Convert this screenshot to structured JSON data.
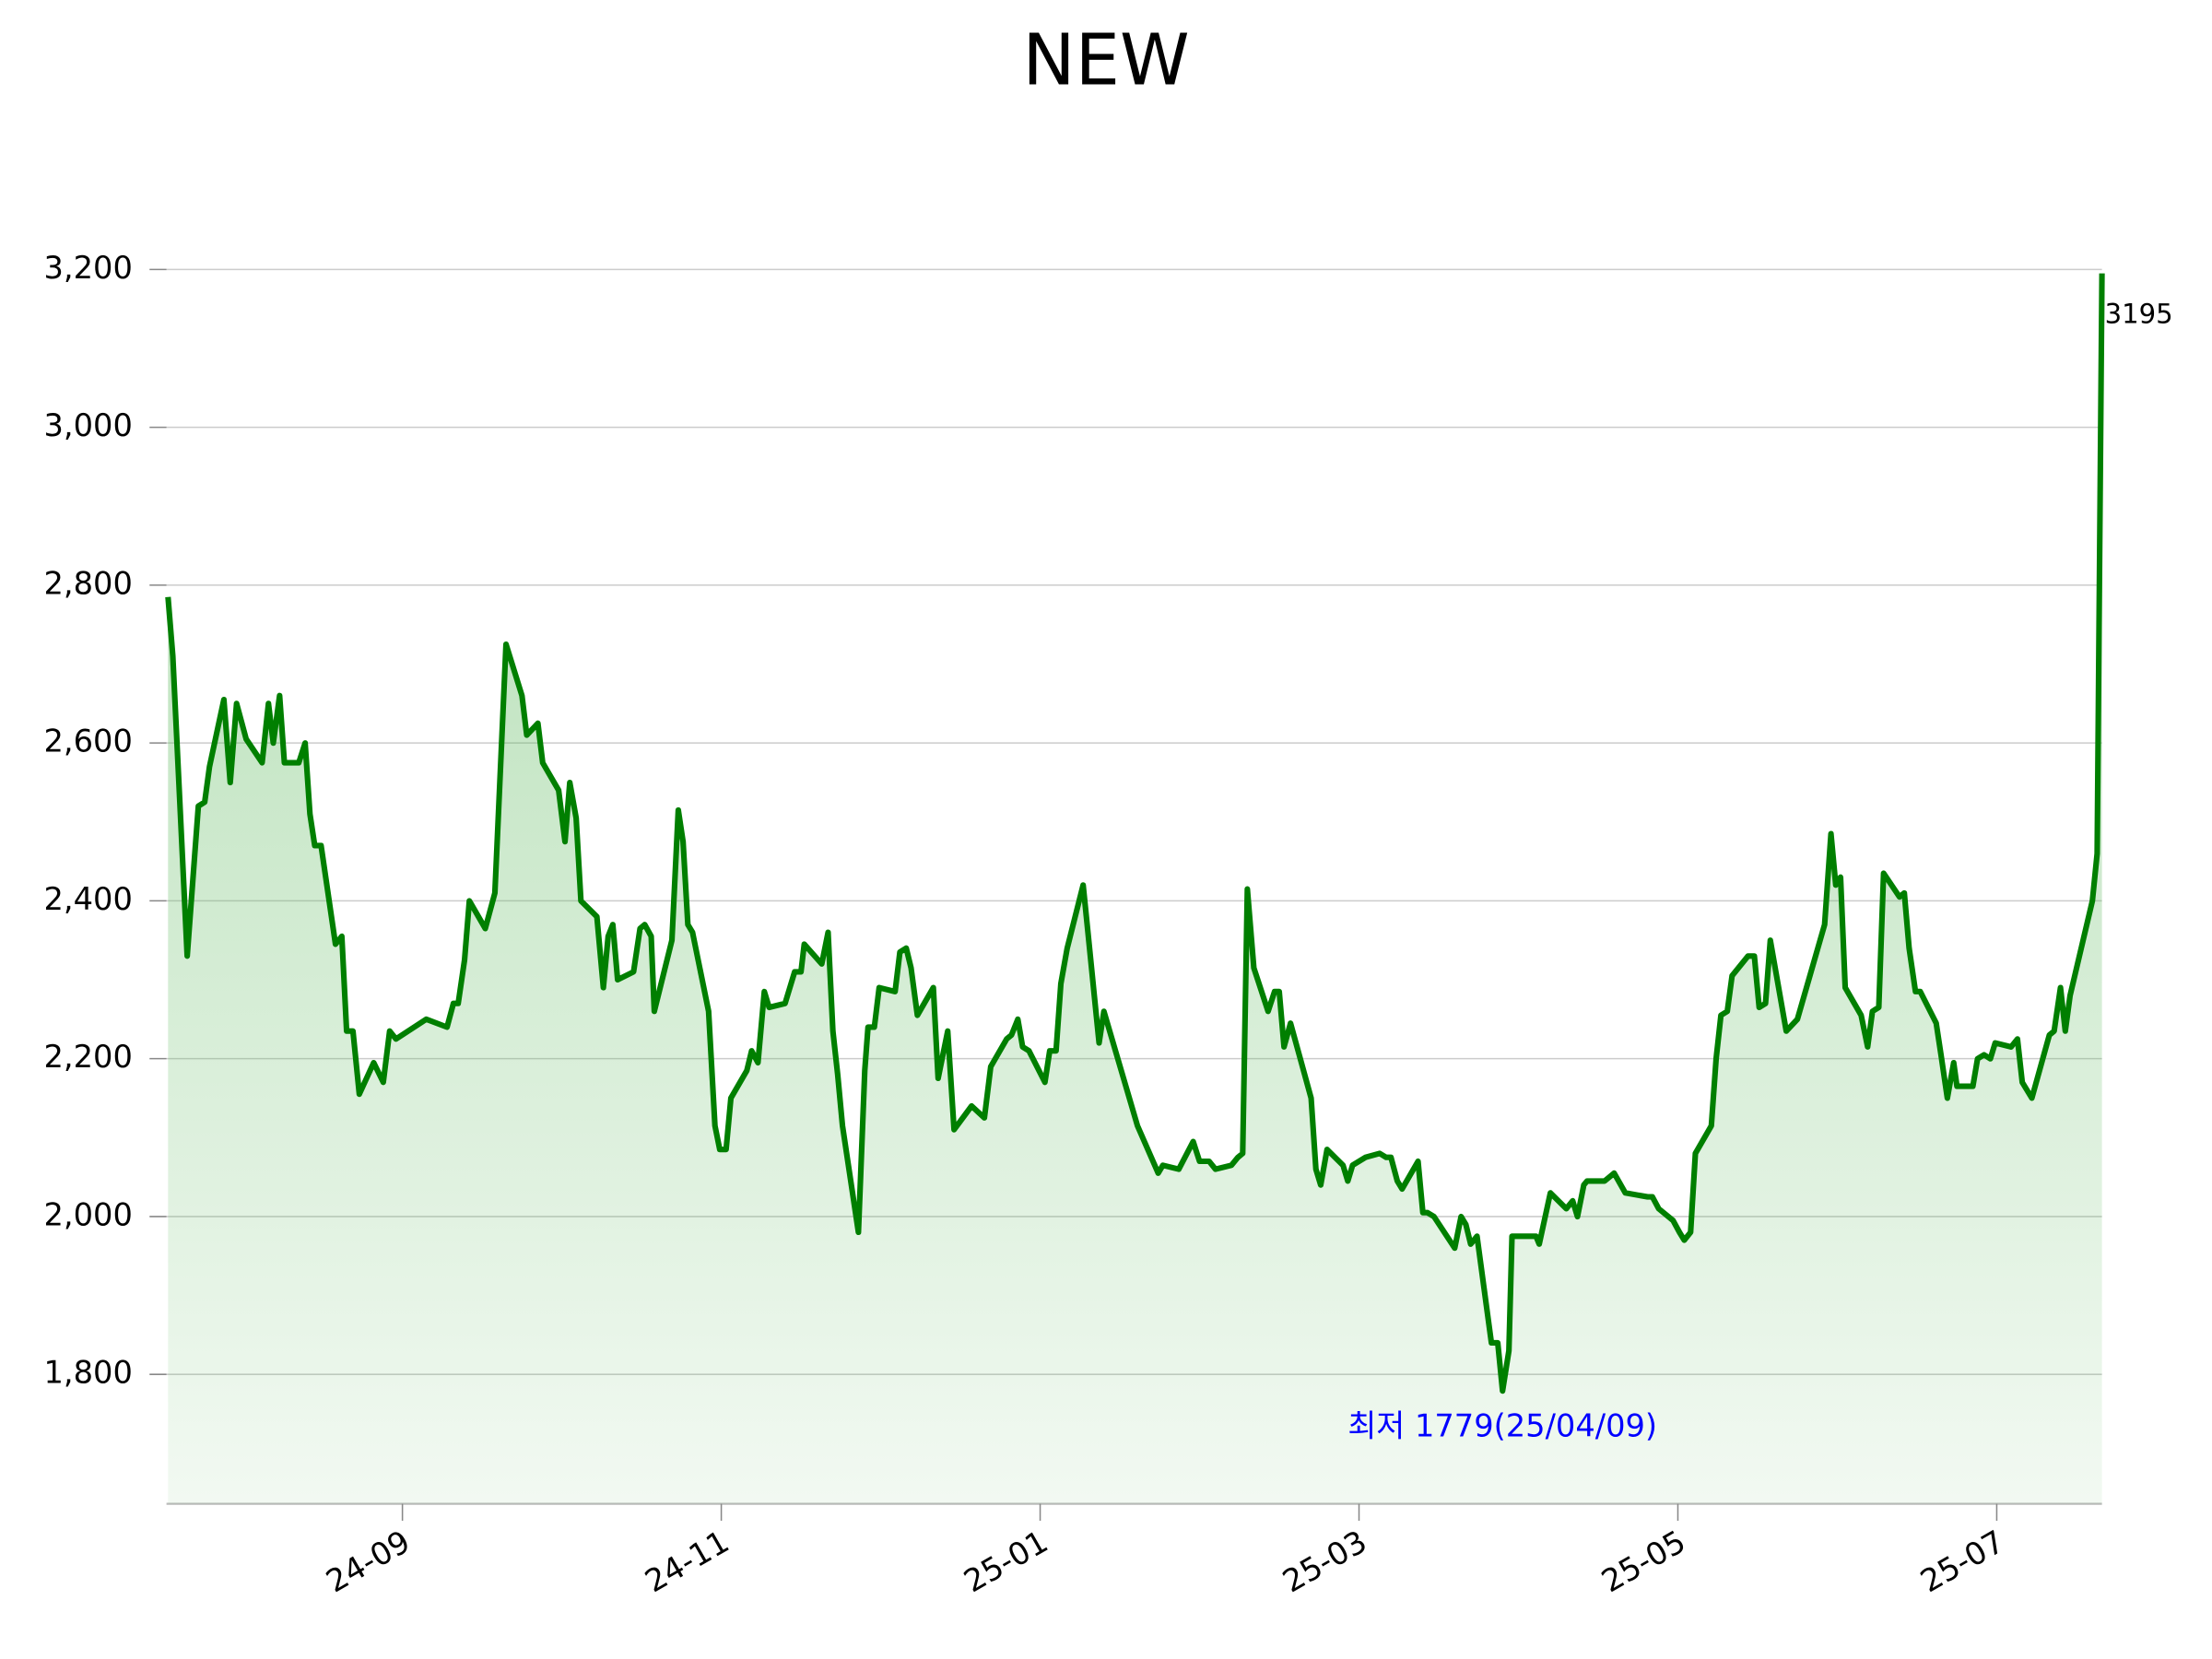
{
  "chart_data": {
    "type": "line",
    "title": "NEW",
    "color": "#007f00",
    "fill_color": "#5cb85c",
    "grid": true,
    "xlim": [
      -1.48,
      10.66
    ],
    "xticks": [
      {
        "value": 0,
        "label": "24-09"
      },
      {
        "value": 2,
        "label": "24-11"
      },
      {
        "value": 4,
        "label": "25-01"
      },
      {
        "value": 6,
        "label": "25-03"
      },
      {
        "value": 8,
        "label": "25-05"
      },
      {
        "value": 10,
        "label": "25-07"
      }
    ],
    "ylim": [
      1636,
      3200
    ],
    "yticks": [
      {
        "value": 1800,
        "label": "1,800"
      },
      {
        "value": 2000,
        "label": "2,000"
      },
      {
        "value": 2200,
        "label": "2,200"
      },
      {
        "value": 2400,
        "label": "2,400"
      },
      {
        "value": 2600,
        "label": "2,600"
      },
      {
        "value": 2800,
        "label": "2,800"
      },
      {
        "value": 3000,
        "label": "3,000"
      },
      {
        "value": 3200,
        "label": "3,200"
      }
    ],
    "x": [
      -1.47,
      -1.44,
      -1.35,
      -1.28,
      -1.24,
      -1.21,
      -1.12,
      -1.08,
      -1.04,
      -0.98,
      -0.88,
      -0.84,
      -0.81,
      -0.77,
      -0.74,
      -0.65,
      -0.61,
      -0.58,
      -0.55,
      -0.51,
      -0.42,
      -0.38,
      -0.35,
      -0.31,
      -0.27,
      -0.18,
      -0.12,
      -0.08,
      -0.04,
      0.15,
      0.28,
      0.32,
      0.35,
      0.39,
      0.42,
      0.52,
      0.58,
      0.65,
      0.75,
      0.78,
      0.85,
      0.88,
      0.98,
      1.02,
      1.05,
      1.09,
      1.12,
      1.22,
      1.26,
      1.29,
      1.32,
      1.35,
      1.45,
      1.49,
      1.52,
      1.56,
      1.58,
      1.69,
      1.73,
      1.76,
      1.79,
      1.82,
      1.92,
      1.96,
      1.99,
      2.03,
      2.06,
      2.16,
      2.19,
      2.23,
      2.27,
      2.3,
      2.4,
      2.46,
      2.5,
      2.52,
      2.63,
      2.67,
      2.7,
      2.73,
      2.76,
      2.86,
      2.9,
      2.92,
      2.96,
      2.99,
      3.09,
      3.12,
      3.16,
      3.19,
      3.23,
      3.33,
      3.36,
      3.42,
      3.46,
      3.57,
      3.65,
      3.69,
      3.79,
      3.82,
      3.86,
      3.89,
      3.93,
      4.03,
      4.06,
      4.1,
      4.13,
      4.17,
      4.27,
      4.3,
      4.34,
      4.37,
      4.4,
      4.61,
      4.74,
      4.77,
      4.87,
      4.96,
      5.0,
      5.06,
      5.1,
      5.2,
      5.24,
      5.27,
      5.3,
      5.34,
      5.43,
      5.47,
      5.5,
      5.53,
      5.57,
      5.7,
      5.73,
      5.76,
      5.8,
      5.9,
      5.93,
      5.96,
      6.04,
      6.13,
      6.17,
      6.2,
      6.24,
      6.27,
      6.37,
      6.4,
      6.43,
      6.47,
      6.6,
      6.64,
      6.67,
      6.7,
      6.74,
      6.83,
      6.87,
      6.9,
      6.94,
      6.96,
      7.07,
      7.11,
      7.13,
      7.2,
      7.3,
      7.34,
      7.37,
      7.41,
      7.43,
      7.5,
      7.54,
      7.6,
      7.67,
      7.81,
      7.84,
      7.88,
      7.97,
      8.01,
      8.04,
      8.08,
      8.11,
      8.21,
      8.24,
      8.27,
      8.31,
      8.34,
      8.44,
      8.48,
      8.51,
      8.55,
      8.58,
      8.68,
      8.75,
      8.92,
      8.96,
      8.99,
      9.02,
      9.05,
      9.15,
      9.19,
      9.22,
      9.26,
      9.29,
      9.39,
      9.42,
      9.45,
      9.49,
      9.52,
      9.62,
      9.65,
      9.69,
      9.73,
      9.75,
      9.85,
      9.88,
      9.92,
      9.96,
      9.99,
      10.09,
      10.13,
      10.16,
      10.22,
      10.33,
      10.36,
      10.4,
      10.43,
      10.46,
      10.6,
      10.63,
      10.66
    ],
    "values": [
      2785,
      2710,
      2330,
      2520,
      2525,
      2570,
      2655,
      2550,
      2650,
      2605,
      2575,
      2650,
      2600,
      2660,
      2575,
      2575,
      2600,
      2510,
      2470,
      2470,
      2345,
      2355,
      2235,
      2235,
      2155,
      2195,
      2170,
      2235,
      2225,
      2250,
      2240,
      2270,
      2270,
      2325,
      2400,
      2365,
      2410,
      2725,
      2660,
      2610,
      2625,
      2575,
      2540,
      2475,
      2550,
      2505,
      2400,
      2380,
      2290,
      2355,
      2370,
      2300,
      2310,
      2365,
      2370,
      2355,
      2260,
      2350,
      2515,
      2475,
      2370,
      2360,
      2260,
      2115,
      2085,
      2085,
      2150,
      2185,
      2210,
      2195,
      2285,
      2265,
      2270,
      2310,
      2310,
      2345,
      2320,
      2360,
      2235,
      2180,
      2115,
      1980,
      2185,
      2240,
      2240,
      2290,
      2285,
      2335,
      2340,
      2315,
      2255,
      2290,
      2175,
      2235,
      2110,
      2140,
      2125,
      2190,
      2225,
      2230,
      2250,
      2215,
      2210,
      2170,
      2210,
      2210,
      2295,
      2340,
      2420,
      2360,
      2280,
      2220,
      2260,
      2115,
      2055,
      2065,
      2060,
      2095,
      2070,
      2070,
      2060,
      2065,
      2075,
      2080,
      2415,
      2315,
      2260,
      2285,
      2285,
      2215,
      2245,
      2150,
      2060,
      2040,
      2085,
      2065,
      2045,
      2065,
      2075,
      2080,
      2075,
      2075,
      2045,
      2035,
      2070,
      2005,
      2005,
      2000,
      1960,
      2000,
      1990,
      1965,
      1975,
      1840,
      1840,
      1779,
      1830,
      1975,
      1975,
      1975,
      1965,
      2030,
      2010,
      2020,
      2000,
      2040,
      2045,
      2045,
      2045,
      2055,
      2030,
      2025,
      2025,
      2010,
      1995,
      1980,
      1970,
      1980,
      2080,
      2115,
      2200,
      2255,
      2260,
      2305,
      2330,
      2330,
      2265,
      2270,
      2350,
      2235,
      2250,
      2370,
      2485,
      2420,
      2430,
      2290,
      2255,
      2215,
      2260,
      2265,
      2435,
      2405,
      2410,
      2340,
      2285,
      2285,
      2245,
      2205,
      2150,
      2195,
      2165,
      2165,
      2200,
      2205,
      2200,
      2220,
      2215,
      2225,
      2170,
      2150,
      2230,
      2235,
      2290,
      2235,
      2280,
      2400,
      2460,
      3195
    ],
    "min_label": {
      "text": "최저 1779(25/04/09)",
      "color": "#0000ff"
    },
    "last_label": {
      "text": "3195"
    }
  }
}
